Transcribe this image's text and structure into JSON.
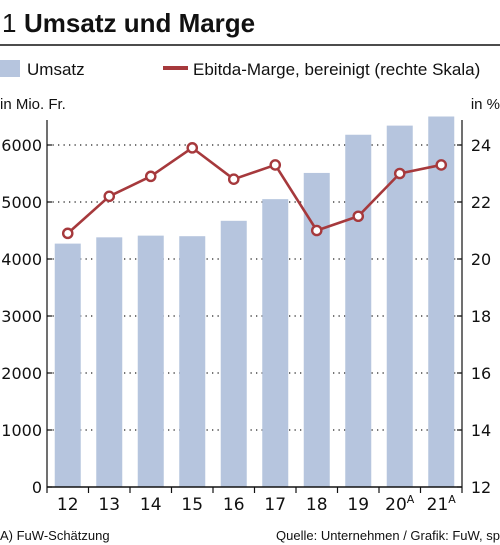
{
  "header": {
    "number": "1",
    "title": "Umsatz und Marge"
  },
  "legend": {
    "bar_label": "Umsatz",
    "line_label": "Ebitda-Marge, bereinigt (rechte Skala)"
  },
  "footer": {
    "note": "A) FuW-Schätzung",
    "source": "Quelle: Unternehmen / Grafik: FuW, sp"
  },
  "colors": {
    "bar": "#b6c5de",
    "line": "#a6393c",
    "text": "#111111",
    "grid": "#222222"
  },
  "chart_data": {
    "type": "bar",
    "categories": [
      "12",
      "13",
      "14",
      "15",
      "16",
      "17",
      "18",
      "19",
      "20",
      "21"
    ],
    "category_superscripts": [
      "",
      "",
      "",
      "",
      "",
      "",
      "",
      "",
      "A",
      "A"
    ],
    "series": [
      {
        "name": "Umsatz",
        "type": "bar",
        "axis": "left",
        "values": [
          4270,
          4380,
          4410,
          4400,
          4670,
          5050,
          5510,
          6180,
          6340,
          6500
        ]
      },
      {
        "name": "Ebitda-Marge, bereinigt (rechte Skala)",
        "type": "line",
        "axis": "right",
        "values": [
          20.9,
          22.2,
          22.9,
          23.9,
          22.8,
          23.3,
          21.0,
          21.5,
          23.0,
          23.3
        ]
      }
    ],
    "y_left": {
      "unit_label": "in Mio. Fr.",
      "min": 0,
      "max": 6000,
      "ticks": [
        0,
        1000,
        2000,
        3000,
        4000,
        5000,
        6000
      ]
    },
    "y_right": {
      "unit_label": "in %",
      "min": 12,
      "max": 24,
      "ticks": [
        12,
        14,
        16,
        18,
        20,
        22,
        24
      ]
    },
    "grid": "dotted horizontal",
    "legend_position": "top"
  }
}
